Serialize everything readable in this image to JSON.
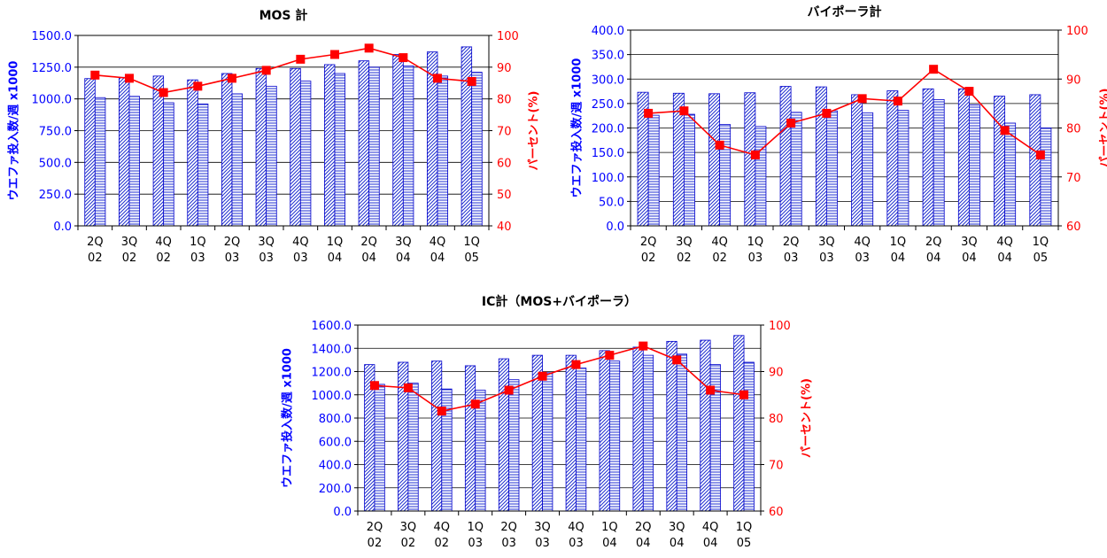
{
  "colors": {
    "bar_fill": "#ffffff",
    "bar_stroke": "#0000cc",
    "bar_hatch": "#1f2fd0",
    "line": "#ff0000",
    "left_axis_text": "#0000ff",
    "right_axis_text": "#ff0000",
    "gridline": "#000000"
  },
  "chart_data": [
    {
      "type": "bar+line",
      "title": "MOS 計",
      "ylabel_left": "ウエファ投入数/週 x1000",
      "ylabel_right": "パーセント(%)",
      "categories": [
        "2Q 02",
        "3Q 02",
        "4Q 02",
        "1Q 03",
        "2Q 03",
        "3Q 03",
        "4Q 03",
        "1Q 04",
        "2Q 04",
        "3Q 04",
        "4Q 04",
        "1Q 05"
      ],
      "categories_line1": [
        "2Q",
        "3Q",
        "4Q",
        "1Q",
        "2Q",
        "3Q",
        "4Q",
        "1Q",
        "2Q",
        "3Q",
        "4Q",
        "1Q"
      ],
      "categories_line2": [
        "02",
        "02",
        "02",
        "03",
        "03",
        "03",
        "03",
        "04",
        "04",
        "04",
        "04",
        "05"
      ],
      "ylim_left": [
        0,
        1500
      ],
      "yticks_left": [
        "0.0",
        "250.0",
        "500.0",
        "750.0",
        "1000.0",
        "1250.0",
        "1500.0"
      ],
      "ylim_right": [
        40,
        100
      ],
      "yticks_right": [
        "40",
        "50",
        "60",
        "70",
        "80",
        "90",
        "100"
      ],
      "grid": true,
      "series": [
        {
          "name": "",
          "kind": "bar",
          "pattern": "diagonal",
          "values": [
            1160,
            1170,
            1180,
            1150,
            1200,
            1240,
            1240,
            1270,
            1300,
            1350,
            1370,
            1410
          ]
        },
        {
          "name": "",
          "kind": "bar",
          "pattern": "horizontal",
          "values": [
            1010,
            1020,
            970,
            960,
            1040,
            1100,
            1140,
            1200,
            1250,
            1260,
            1180,
            1210
          ]
        },
        {
          "name": "",
          "kind": "line",
          "axis": "right",
          "values": [
            87.5,
            86.5,
            82,
            84,
            86.5,
            89,
            92.5,
            94,
            96,
            93,
            86.5,
            85.5
          ]
        }
      ]
    },
    {
      "type": "bar+line",
      "title": "バイポーラ計",
      "ylabel_left": "ウエファ投入数/週 x1000",
      "ylabel_right": "パーセント(%)",
      "categories": [
        "2Q 02",
        "3Q 02",
        "4Q 02",
        "1Q 03",
        "2Q 03",
        "3Q 03",
        "4Q 03",
        "1Q 04",
        "2Q 04",
        "3Q 04",
        "4Q 04",
        "1Q 05"
      ],
      "categories_line1": [
        "2Q",
        "3Q",
        "4Q",
        "1Q",
        "2Q",
        "3Q",
        "4Q",
        "1Q",
        "2Q",
        "3Q",
        "4Q",
        "1Q"
      ],
      "categories_line2": [
        "02",
        "02",
        "02",
        "03",
        "03",
        "03",
        "03",
        "04",
        "04",
        "04",
        "04",
        "05"
      ],
      "ylim_left": [
        0,
        400
      ],
      "yticks_left": [
        "0.0",
        "50.0",
        "100.0",
        "150.0",
        "200.0",
        "250.0",
        "300.0",
        "350.0",
        "400.0"
      ],
      "ylim_right": [
        60,
        100
      ],
      "yticks_right": [
        "60",
        "70",
        "80",
        "90",
        "100"
      ],
      "grid": true,
      "series": [
        {
          "name": "",
          "kind": "bar",
          "pattern": "diagonal",
          "values": [
            273,
            271,
            270,
            272,
            285,
            284,
            268,
            276,
            280,
            280,
            265,
            268
          ]
        },
        {
          "name": "",
          "kind": "bar",
          "pattern": "horizontal",
          "values": [
            226,
            228,
            207,
            203,
            232,
            235,
            231,
            236,
            258,
            247,
            210,
            200
          ]
        },
        {
          "name": "",
          "kind": "line",
          "axis": "right",
          "values": [
            83,
            83.5,
            76.5,
            74.5,
            81,
            83,
            86,
            85.5,
            92,
            87.5,
            79.5,
            74.5
          ]
        }
      ]
    },
    {
      "type": "bar+line",
      "title": "IC計（MOS+バイポーラ）",
      "ylabel_left": "ウエファ投入数/週 x1000",
      "ylabel_right": "パーセント(%)",
      "categories": [
        "2Q 02",
        "3Q 02",
        "4Q 02",
        "1Q 03",
        "2Q 03",
        "3Q 03",
        "4Q 03",
        "1Q 04",
        "2Q 04",
        "3Q 04",
        "4Q 04",
        "1Q 05"
      ],
      "categories_line1": [
        "2Q",
        "3Q",
        "4Q",
        "1Q",
        "2Q",
        "3Q",
        "4Q",
        "1Q",
        "2Q",
        "3Q",
        "4Q",
        "1Q"
      ],
      "categories_line2": [
        "02",
        "02",
        "02",
        "03",
        "03",
        "03",
        "03",
        "04",
        "04",
        "04",
        "04",
        "05"
      ],
      "ylim_left": [
        0,
        1600
      ],
      "yticks_left": [
        "0.0",
        "200.0",
        "400.0",
        "600.0",
        "800.0",
        "1000.0",
        "1200.0",
        "1400.0",
        "1600.0"
      ],
      "ylim_right": [
        60,
        100
      ],
      "yticks_right": [
        "60",
        "70",
        "80",
        "90",
        "100"
      ],
      "grid": true,
      "series": [
        {
          "name": "",
          "kind": "bar",
          "pattern": "diagonal",
          "values": [
            1260,
            1280,
            1290,
            1250,
            1310,
            1340,
            1340,
            1380,
            1410,
            1460,
            1470,
            1510
          ]
        },
        {
          "name": "",
          "kind": "bar",
          "pattern": "horizontal",
          "values": [
            1090,
            1100,
            1050,
            1040,
            1130,
            1190,
            1230,
            1290,
            1340,
            1350,
            1260,
            1280
          ]
        },
        {
          "name": "",
          "kind": "line",
          "axis": "right",
          "values": [
            87,
            86.5,
            81.5,
            83,
            86,
            89,
            91.5,
            93.5,
            95.5,
            92.5,
            86,
            85
          ]
        }
      ]
    }
  ]
}
